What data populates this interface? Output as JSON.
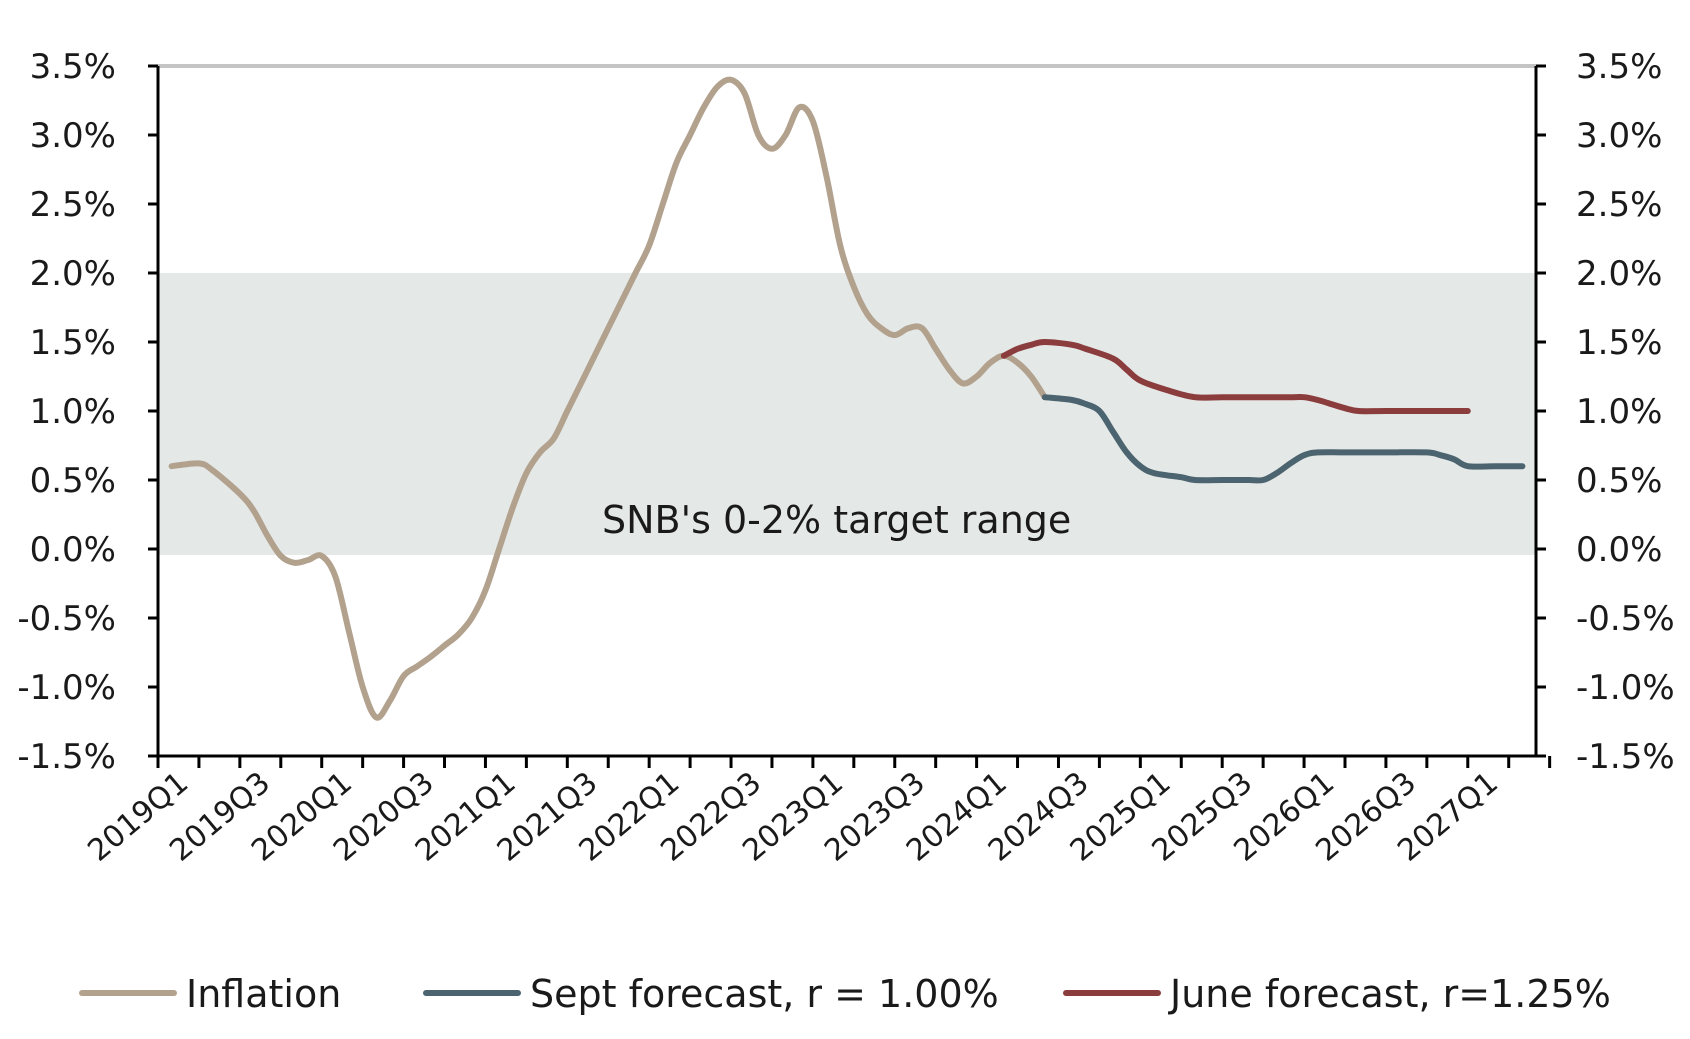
{
  "chart_data": {
    "type": "line",
    "x_tick_labels": [
      "2019Q1",
      "2019Q3",
      "2020Q1",
      "2020Q3",
      "2021Q1",
      "2021Q3",
      "2022Q1",
      "2022Q3",
      "2023Q1",
      "2023Q3",
      "2024Q1",
      "2024Q3",
      "2025Q1",
      "2025Q3",
      "2026Q1",
      "2026Q3",
      "2027Q1"
    ],
    "x_range": [
      "2019M01",
      "2027M06"
    ],
    "y_tick_labels": [
      "3.5%",
      "3.0%",
      "2.5%",
      "2.0%",
      "1.5%",
      "1.0%",
      "0.5%",
      "0.0%",
      "-0.5%",
      "-1.0%",
      "-1.5%"
    ],
    "ylim": [
      -1.5,
      3.5
    ],
    "y_unit": "%",
    "shaded_band": {
      "from": 0,
      "to": 2,
      "label": "SNB's 0-2% target range",
      "color": "#e4e8e7"
    },
    "series": [
      {
        "name": "Inflation",
        "color": "#b2a18d",
        "points": [
          [
            "2019M02",
            0.6
          ],
          [
            "2019M04",
            0.62
          ],
          [
            "2019M05",
            0.57
          ],
          [
            "2019M07",
            0.4
          ],
          [
            "2019M08",
            0.28
          ],
          [
            "2019M09",
            0.1
          ],
          [
            "2019M10",
            -0.05
          ],
          [
            "2019M11",
            -0.1
          ],
          [
            "2019M12",
            -0.08
          ],
          [
            "2020M01",
            -0.05
          ],
          [
            "2020M02",
            -0.2
          ],
          [
            "2020M03",
            -0.6
          ],
          [
            "2020M04",
            -1.0
          ],
          [
            "2020M05",
            -1.22
          ],
          [
            "2020M06",
            -1.1
          ],
          [
            "2020M07",
            -0.92
          ],
          [
            "2020M08",
            -0.85
          ],
          [
            "2020M09",
            -0.78
          ],
          [
            "2020M10",
            -0.7
          ],
          [
            "2020M11",
            -0.62
          ],
          [
            "2020M12",
            -0.5
          ],
          [
            "2021M01",
            -0.3
          ],
          [
            "2021M02",
            0.0
          ],
          [
            "2021M03",
            0.3
          ],
          [
            "2021M04",
            0.55
          ],
          [
            "2021M05",
            0.7
          ],
          [
            "2021M06",
            0.8
          ],
          [
            "2021M07",
            1.0
          ],
          [
            "2021M08",
            1.2
          ],
          [
            "2021M09",
            1.4
          ],
          [
            "2021M10",
            1.6
          ],
          [
            "2021M11",
            1.8
          ],
          [
            "2021M12",
            2.0
          ],
          [
            "2022M01",
            2.2
          ],
          [
            "2022M02",
            2.5
          ],
          [
            "2022M03",
            2.8
          ],
          [
            "2022M04",
            3.0
          ],
          [
            "2022M05",
            3.2
          ],
          [
            "2022M06",
            3.35
          ],
          [
            "2022M07",
            3.4
          ],
          [
            "2022M08",
            3.3
          ],
          [
            "2022M09",
            3.0
          ],
          [
            "2022M10",
            2.9
          ],
          [
            "2022M11",
            3.0
          ],
          [
            "2022M12",
            3.2
          ],
          [
            "2023M01",
            3.1
          ],
          [
            "2023M02",
            2.7
          ],
          [
            "2023M03",
            2.2
          ],
          [
            "2023M04",
            1.9
          ],
          [
            "2023M05",
            1.7
          ],
          [
            "2023M06",
            1.6
          ],
          [
            "2023M07",
            1.55
          ],
          [
            "2023M08",
            1.6
          ],
          [
            "2023M09",
            1.6
          ],
          [
            "2023M10",
            1.45
          ],
          [
            "2023M11",
            1.3
          ],
          [
            "2023M12",
            1.2
          ],
          [
            "2024M01",
            1.25
          ],
          [
            "2024M02",
            1.35
          ],
          [
            "2024M03",
            1.4
          ],
          [
            "2024M04",
            1.35
          ],
          [
            "2024M05",
            1.25
          ],
          [
            "2024M06",
            1.1
          ]
        ]
      },
      {
        "name": "Sept forecast, r = 1.00%",
        "color": "#4c6470",
        "points": [
          [
            "2024M06",
            1.1
          ],
          [
            "2024M08",
            1.08
          ],
          [
            "2024M09",
            1.05
          ],
          [
            "2024M10",
            1.0
          ],
          [
            "2024M11",
            0.85
          ],
          [
            "2024M12",
            0.7
          ],
          [
            "2025M01",
            0.6
          ],
          [
            "2025M02",
            0.55
          ],
          [
            "2025M04",
            0.52
          ],
          [
            "2025M05",
            0.5
          ],
          [
            "2025M07",
            0.5
          ],
          [
            "2025M08",
            0.5
          ],
          [
            "2025M09",
            0.5
          ],
          [
            "2025M10",
            0.5
          ],
          [
            "2025M11",
            0.55
          ],
          [
            "2025M12",
            0.62
          ],
          [
            "2026M01",
            0.68
          ],
          [
            "2026M02",
            0.7
          ],
          [
            "2026M04",
            0.7
          ],
          [
            "2026M07",
            0.7
          ],
          [
            "2026M10",
            0.7
          ],
          [
            "2026M11",
            0.68
          ],
          [
            "2026M12",
            0.65
          ],
          [
            "2027M01",
            0.6
          ],
          [
            "2027M03",
            0.6
          ],
          [
            "2027M05",
            0.6
          ]
        ]
      },
      {
        "name": "June forecast, r=1.25%",
        "color": "#8b3c3c",
        "points": [
          [
            "2024M03",
            1.4
          ],
          [
            "2024M04",
            1.45
          ],
          [
            "2024M05",
            1.48
          ],
          [
            "2024M06",
            1.5
          ],
          [
            "2024M08",
            1.48
          ],
          [
            "2024M09",
            1.45
          ],
          [
            "2024M11",
            1.38
          ],
          [
            "2024M12",
            1.3
          ],
          [
            "2025M01",
            1.22
          ],
          [
            "2025M03",
            1.15
          ],
          [
            "2025M05",
            1.1
          ],
          [
            "2025M07",
            1.1
          ],
          [
            "2025M10",
            1.1
          ],
          [
            "2025M12",
            1.1
          ],
          [
            "2026M01",
            1.1
          ],
          [
            "2026M02",
            1.08
          ],
          [
            "2026M03",
            1.05
          ],
          [
            "2026M04",
            1.02
          ],
          [
            "2026M05",
            1.0
          ],
          [
            "2026M07",
            1.0
          ],
          [
            "2026M10",
            1.0
          ],
          [
            "2026M12",
            1.0
          ],
          [
            "2027M01",
            1.0
          ]
        ]
      }
    ],
    "legend_position": "bottom",
    "grid": false
  }
}
